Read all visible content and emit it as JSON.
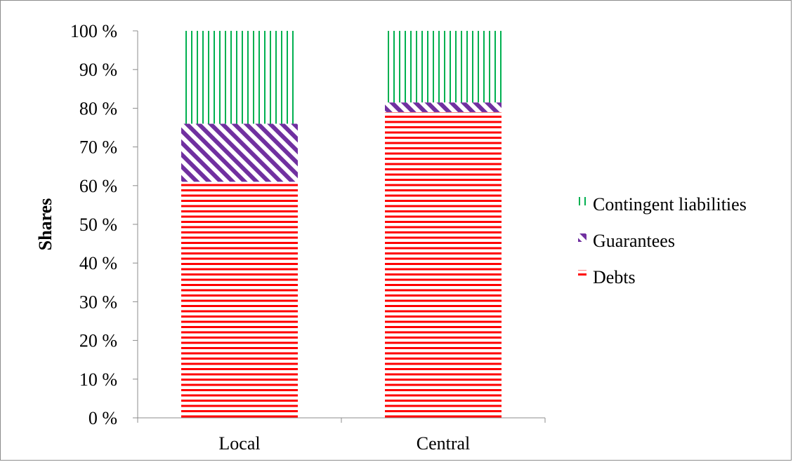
{
  "chart_data": {
    "type": "bar",
    "stacked": true,
    "categories": [
      "Local",
      "Central"
    ],
    "series": [
      {
        "name": "Debts",
        "values": [
          61,
          79
        ],
        "color": "#ff0000",
        "pattern": "horizontal-lines"
      },
      {
        "name": "Guarantees",
        "values": [
          15,
          2.5
        ],
        "color": "#7030a0",
        "pattern": "diagonal-stripes"
      },
      {
        "name": "Contingent liabilities",
        "values": [
          24,
          18.5
        ],
        "color": "#00b050",
        "pattern": "vertical-lines"
      }
    ],
    "y_ticks": [
      "0 %",
      "10 %",
      "20 %",
      "30 %",
      "40 %",
      "50 %",
      "60 %",
      "70 %",
      "80 %",
      "90 %",
      "100 %"
    ],
    "ylim": [
      0,
      100
    ],
    "xlabel": "",
    "ylabel": "Shares",
    "legend_position": "right",
    "grid": false
  }
}
